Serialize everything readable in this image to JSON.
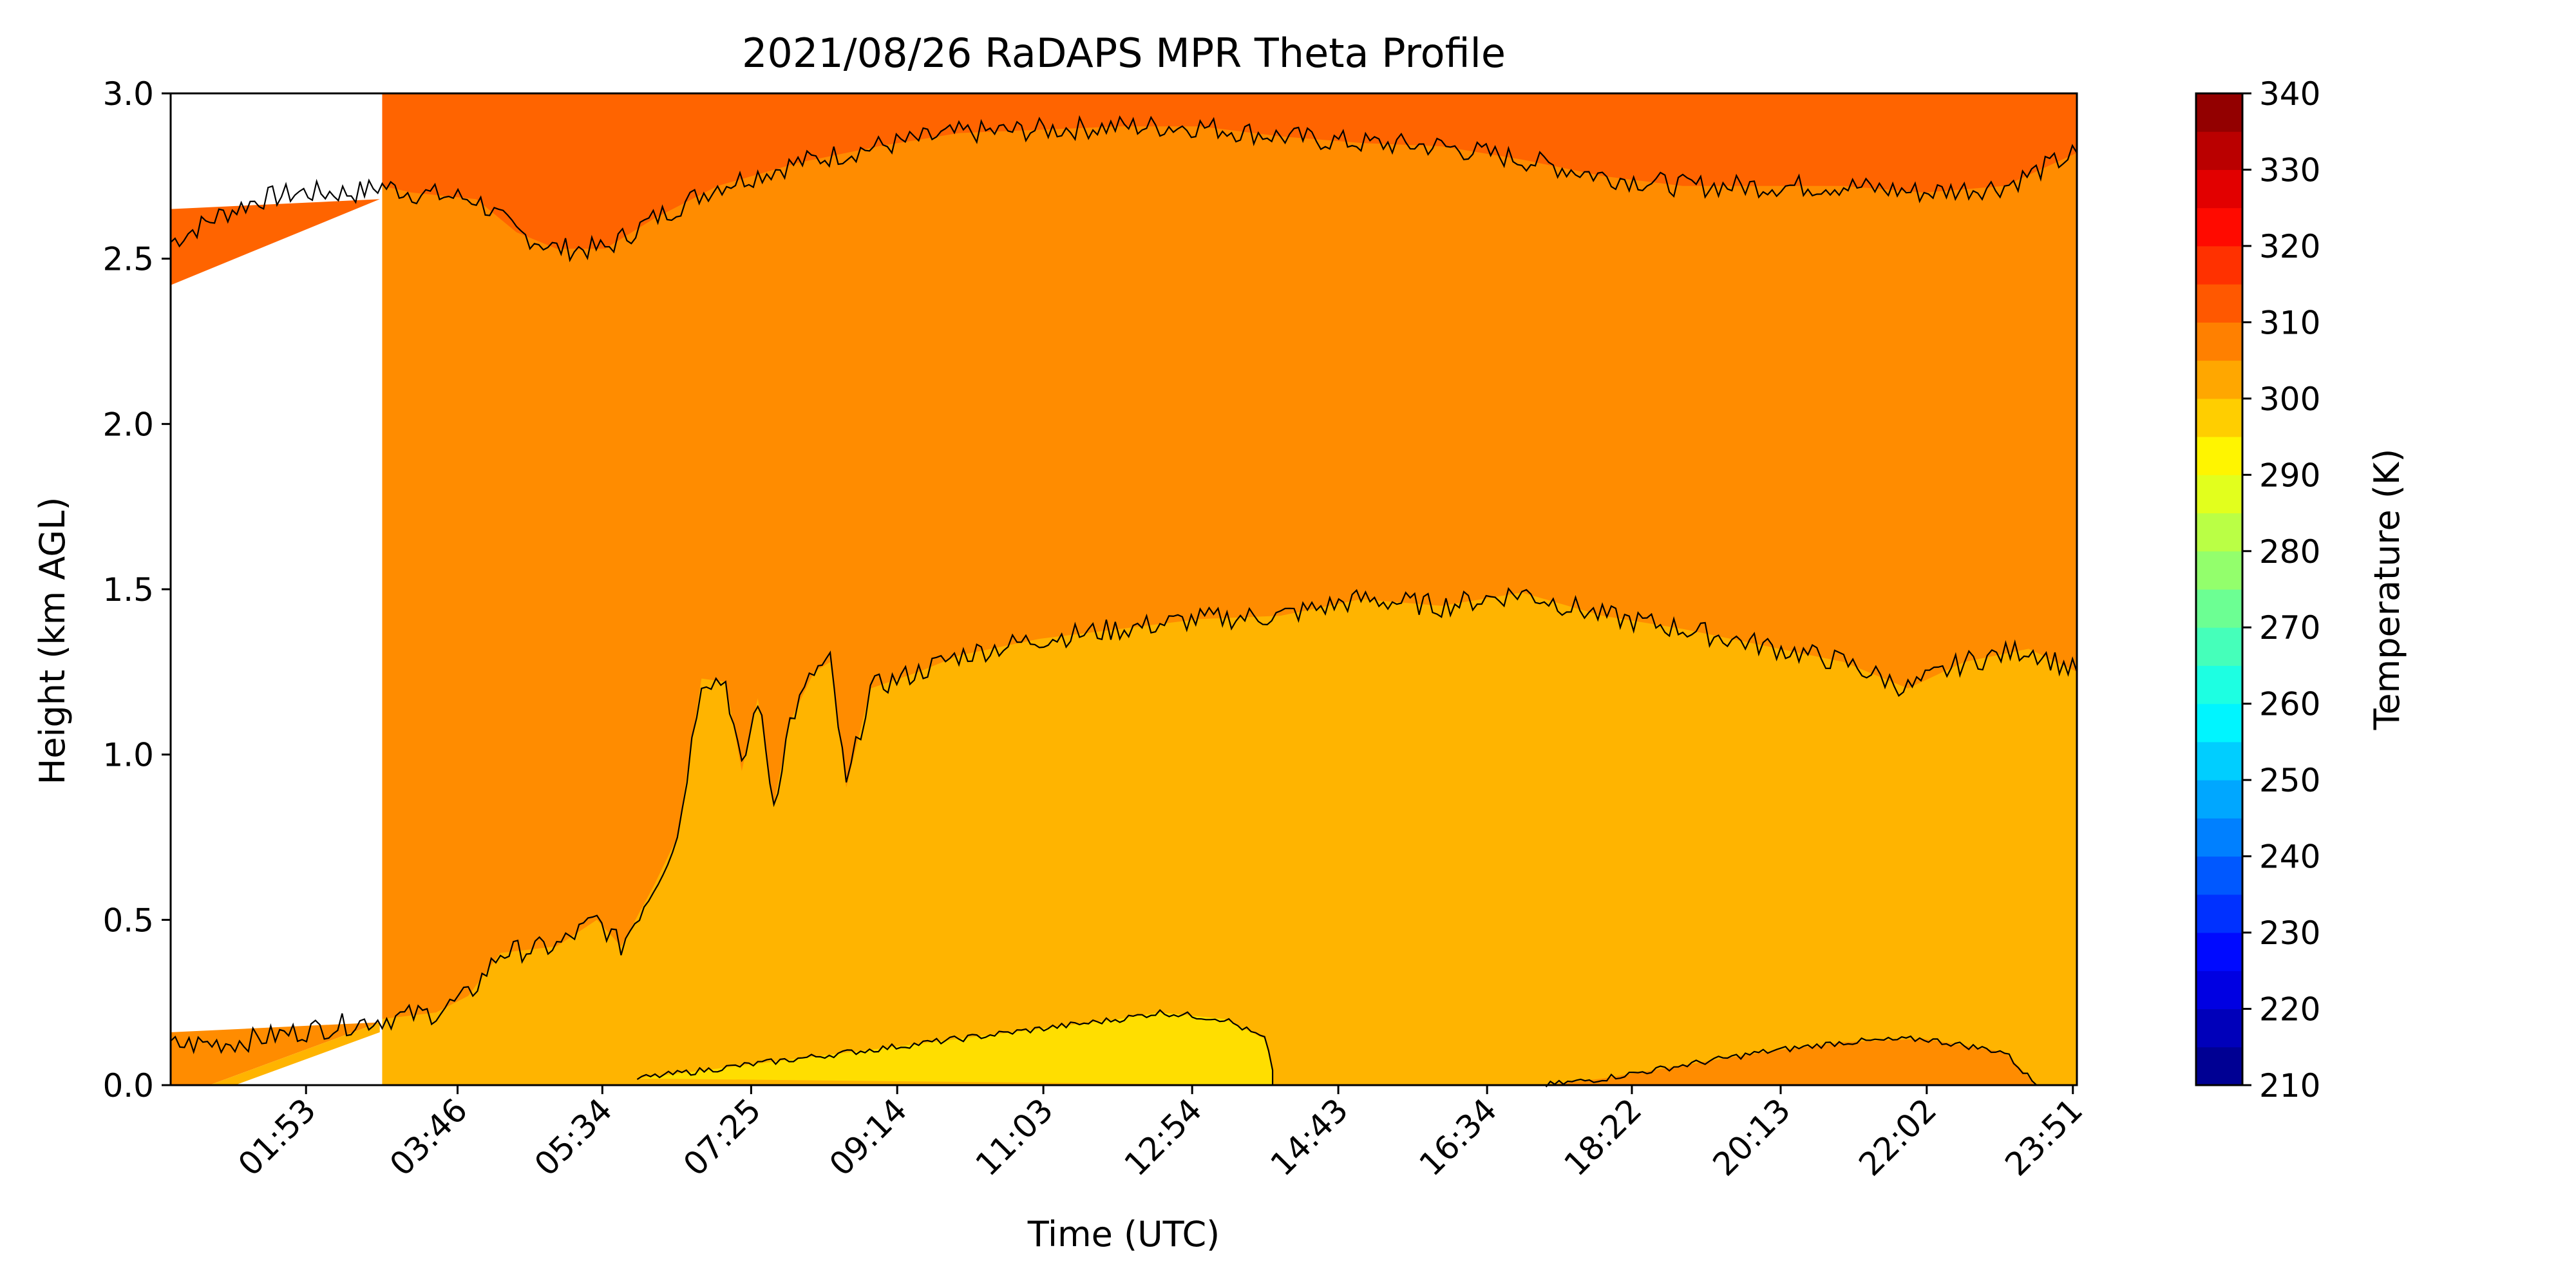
{
  "chart_data": {
    "type": "heatmap",
    "title": "2021/08/26 RaDAPS MPR Theta Profile",
    "xlabel": "Time (UTC)",
    "ylabel": "Height (km AGL)",
    "colorbar_label": "Temperature (K)",
    "x_ticks": [
      "01:53",
      "03:46",
      "05:34",
      "07:25",
      "09:14",
      "11:03",
      "12:54",
      "14:43",
      "16:34",
      "18:22",
      "20:13",
      "22:02",
      "23:51"
    ],
    "x_tick_hours": [
      1.883,
      3.767,
      5.567,
      7.417,
      9.233,
      11.05,
      12.9,
      14.717,
      16.567,
      18.367,
      20.217,
      22.033,
      23.85
    ],
    "xlim_hours": [
      0.2,
      23.9
    ],
    "ylim": [
      0,
      3.0
    ],
    "y_ticks": [
      "0.0",
      "0.5",
      "1.0",
      "1.5",
      "2.0",
      "2.5",
      "3.0"
    ],
    "y_tick_values": [
      0,
      0.5,
      1.0,
      1.5,
      2.0,
      2.5,
      3.0
    ],
    "data_gap_hours": [
      0.2,
      2.83
    ],
    "colorbar": {
      "min": 210,
      "max": 340,
      "step": 5,
      "tick_labels": [
        "210",
        "220",
        "230",
        "240",
        "250",
        "260",
        "270",
        "280",
        "290",
        "300",
        "310",
        "320",
        "330",
        "340"
      ],
      "colormap": "jet"
    },
    "fill_bands": [
      {
        "range_K": "300-305",
        "color": "#ffb400"
      },
      {
        "range_K": "305-310",
        "color": "#ff8c00"
      },
      {
        "range_K": "310-315",
        "color": "#ff6400"
      },
      {
        "range_K": "295-300",
        "color": "#ffde00"
      }
    ],
    "contours": [
      {
        "level_K": 310,
        "points": [
          [
            0.2,
            2.55
          ],
          [
            0.8,
            2.63
          ],
          [
            1.3,
            2.68
          ],
          [
            1.8,
            2.7
          ],
          [
            2.5,
            2.7
          ],
          [
            2.83,
            2.72
          ],
          [
            3.2,
            2.7
          ],
          [
            4.0,
            2.68
          ],
          [
            4.5,
            2.58
          ],
          [
            5.0,
            2.53
          ],
          [
            5.6,
            2.53
          ],
          [
            6.2,
            2.62
          ],
          [
            7.0,
            2.72
          ],
          [
            8.0,
            2.79
          ],
          [
            9.0,
            2.84
          ],
          [
            10.0,
            2.88
          ],
          [
            11.0,
            2.89
          ],
          [
            12.0,
            2.9
          ],
          [
            13.0,
            2.9
          ],
          [
            14.0,
            2.87
          ],
          [
            15.0,
            2.85
          ],
          [
            16.0,
            2.84
          ],
          [
            17.0,
            2.8
          ],
          [
            18.0,
            2.75
          ],
          [
            19.0,
            2.72
          ],
          [
            20.0,
            2.72
          ],
          [
            21.0,
            2.72
          ],
          [
            22.0,
            2.7
          ],
          [
            23.0,
            2.72
          ],
          [
            23.9,
            2.82
          ]
        ]
      },
      {
        "level_K": 305,
        "points": [
          [
            0.2,
            0.12
          ],
          [
            1.0,
            0.13
          ],
          [
            2.0,
            0.17
          ],
          [
            2.83,
            0.2
          ],
          [
            3.5,
            0.22
          ],
          [
            3.9,
            0.27
          ],
          [
            4.3,
            0.4
          ],
          [
            5.0,
            0.42
          ],
          [
            5.5,
            0.5
          ],
          [
            5.8,
            0.42
          ],
          [
            6.2,
            0.6
          ],
          [
            6.5,
            0.75
          ],
          [
            6.8,
            1.23
          ],
          [
            7.1,
            1.22
          ],
          [
            7.3,
            0.95
          ],
          [
            7.5,
            1.17
          ],
          [
            7.7,
            0.85
          ],
          [
            7.9,
            1.1
          ],
          [
            8.2,
            1.25
          ],
          [
            8.4,
            1.28
          ],
          [
            8.6,
            0.9
          ],
          [
            8.9,
            1.2
          ],
          [
            9.5,
            1.25
          ],
          [
            10.0,
            1.3
          ],
          [
            11.0,
            1.35
          ],
          [
            12.0,
            1.38
          ],
          [
            13.0,
            1.41
          ],
          [
            14.0,
            1.42
          ],
          [
            15.0,
            1.47
          ],
          [
            16.0,
            1.45
          ],
          [
            17.0,
            1.49
          ],
          [
            18.0,
            1.42
          ],
          [
            19.0,
            1.38
          ],
          [
            20.0,
            1.33
          ],
          [
            21.0,
            1.28
          ],
          [
            21.8,
            1.2
          ],
          [
            22.5,
            1.28
          ],
          [
            23.3,
            1.32
          ],
          [
            23.9,
            1.25
          ]
        ]
      },
      {
        "level_K": 300,
        "points": [
          [
            6.0,
            0.02
          ],
          [
            7.0,
            0.05
          ],
          [
            8.0,
            0.08
          ],
          [
            9.0,
            0.11
          ],
          [
            10.0,
            0.14
          ],
          [
            11.0,
            0.17
          ],
          [
            12.0,
            0.2
          ],
          [
            12.5,
            0.22
          ],
          [
            13.3,
            0.2
          ],
          [
            13.8,
            0.14
          ],
          [
            13.9,
            0.05
          ],
          [
            13.9,
            0.0
          ]
        ]
      },
      {
        "level_K": 305,
        "points": [
          [
            17.3,
            0.0
          ],
          [
            18.0,
            0.02
          ],
          [
            19.0,
            0.06
          ],
          [
            20.0,
            0.1
          ],
          [
            21.0,
            0.13
          ],
          [
            22.0,
            0.14
          ],
          [
            23.0,
            0.1
          ],
          [
            23.4,
            0.0
          ]
        ]
      }
    ]
  }
}
